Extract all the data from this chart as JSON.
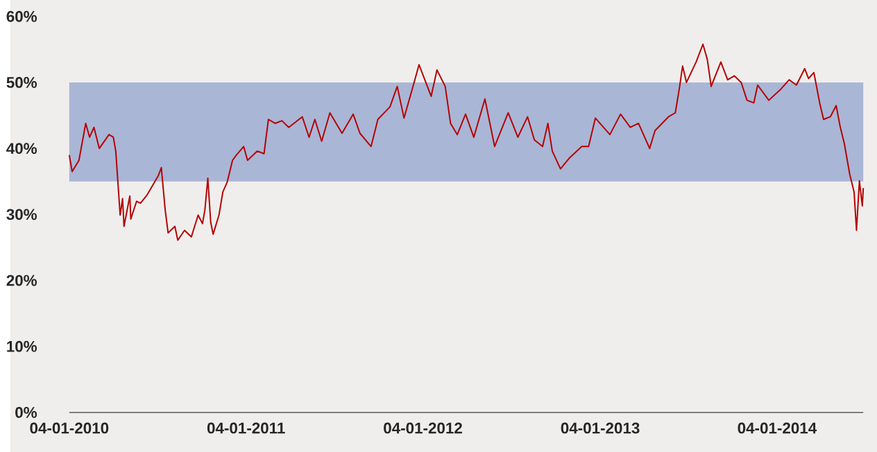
{
  "chart_data": {
    "type": "line",
    "x": [
      "2010-01-04",
      "2010-01-10",
      "2010-01-24",
      "2010-02-07",
      "2010-02-15",
      "2010-02-24",
      "2010-03-07",
      "2010-03-27",
      "2010-04-05",
      "2010-04-10",
      "2010-04-19",
      "2010-04-24",
      "2010-04-27",
      "2010-05-09",
      "2010-05-11",
      "2010-05-23",
      "2010-05-31",
      "2010-06-14",
      "2010-06-29",
      "2010-07-07",
      "2010-07-13",
      "2010-07-21",
      "2010-07-27",
      "2010-08-10",
      "2010-08-16",
      "2010-08-30",
      "2010-09-13",
      "2010-09-27",
      "2010-10-06",
      "2010-10-11",
      "2010-10-17",
      "2010-10-23",
      "2010-10-28",
      "2010-11-09",
      "2010-11-17",
      "2010-11-26",
      "2010-12-07",
      "2010-12-15",
      "2010-12-30",
      "2011-01-07",
      "2011-01-27",
      "2011-02-10",
      "2011-02-19",
      "2011-03-05",
      "2011-03-19",
      "2011-04-02",
      "2011-04-30",
      "2011-05-14",
      "2011-05-26",
      "2011-06-09",
      "2011-06-26",
      "2011-07-21",
      "2011-08-13",
      "2011-08-27",
      "2011-09-19",
      "2011-10-03",
      "2011-10-28",
      "2011-11-12",
      "2011-11-26",
      "2011-12-13",
      "2011-12-27",
      "2012-01-10",
      "2012-01-21",
      "2012-02-02",
      "2012-02-19",
      "2012-03-01",
      "2012-03-15",
      "2012-04-01",
      "2012-04-18",
      "2012-05-11",
      "2012-05-31",
      "2012-06-28",
      "2012-07-18",
      "2012-08-07",
      "2012-08-21",
      "2012-09-07",
      "2012-09-18",
      "2012-09-27",
      "2012-10-14",
      "2012-11-02",
      "2012-11-27",
      "2012-12-11",
      "2012-12-25",
      "2013-01-24",
      "2013-02-15",
      "2013-03-07",
      "2013-03-24",
      "2013-04-16",
      "2013-04-27",
      "2013-05-25",
      "2013-06-08",
      "2013-06-17",
      "2013-06-23",
      "2013-07-01",
      "2013-07-21",
      "2013-08-04",
      "2013-08-13",
      "2013-08-21",
      "2013-09-10",
      "2013-09-24",
      "2013-10-08",
      "2013-10-22",
      "2013-11-03",
      "2013-11-17",
      "2013-11-25",
      "2013-12-18",
      "2014-01-12",
      "2014-01-29",
      "2014-02-13",
      "2014-03-02",
      "2014-03-10",
      "2014-03-21",
      "2014-04-02",
      "2014-04-10",
      "2014-04-24",
      "2014-05-06",
      "2014-05-14",
      "2014-05-23",
      "2014-06-03",
      "2014-06-12",
      "2014-06-17",
      "2014-06-23",
      "2014-06-29",
      "2014-07-01"
    ],
    "series": [
      {
        "color": "#b40000",
        "values": [
          39.0,
          36.5,
          38.2,
          43.8,
          41.7,
          43.2,
          40.0,
          42.1,
          41.7,
          39.6,
          29.9,
          32.4,
          28.2,
          32.8,
          29.3,
          32.0,
          31.7,
          33.0,
          34.9,
          35.9,
          37.1,
          30.7,
          27.2,
          28.2,
          26.1,
          27.6,
          26.6,
          29.9,
          28.6,
          30.7,
          35.5,
          28.8,
          27.0,
          29.9,
          33.4,
          34.9,
          38.2,
          39.0,
          40.3,
          38.2,
          39.6,
          39.2,
          44.4,
          43.8,
          44.2,
          43.2,
          44.8,
          41.7,
          44.4,
          41.1,
          45.4,
          42.3,
          45.2,
          42.3,
          40.3,
          44.4,
          46.3,
          49.4,
          44.6,
          49.0,
          52.7,
          50.0,
          47.9,
          51.9,
          49.4,
          43.8,
          42.1,
          45.2,
          41.7,
          47.5,
          40.3,
          45.4,
          41.7,
          44.8,
          41.3,
          40.3,
          43.8,
          39.6,
          36.9,
          38.6,
          40.3,
          40.3,
          44.6,
          42.1,
          45.2,
          43.2,
          43.8,
          40.0,
          42.7,
          44.8,
          45.4,
          49.4,
          52.5,
          50.0,
          53.1,
          55.8,
          53.5,
          49.4,
          53.1,
          50.4,
          51.0,
          50.0,
          47.3,
          46.9,
          49.6,
          47.3,
          49.0,
          50.4,
          49.6,
          52.1,
          50.6,
          51.5,
          46.9,
          44.4,
          44.8,
          46.5,
          43.4,
          40.7,
          36.1,
          33.4,
          27.6,
          35.1,
          31.3,
          34.0
        ]
      }
    ],
    "xlim": [
      "2010-01-04",
      "2014-07-01"
    ],
    "xticks": [
      {
        "value": "2010-01-04",
        "label": "04-01-2010"
      },
      {
        "value": "2011-01-04",
        "label": "04-01-2011"
      },
      {
        "value": "2012-01-04",
        "label": "04-01-2012"
      },
      {
        "value": "2013-01-04",
        "label": "04-01-2013"
      },
      {
        "value": "2014-01-04",
        "label": "04-01-2014"
      }
    ],
    "ylim": [
      0,
      60
    ],
    "yticks": [
      {
        "value": 0,
        "label": "0%"
      },
      {
        "value": 10,
        "label": "10%"
      },
      {
        "value": 20,
        "label": "20%"
      },
      {
        "value": 30,
        "label": "30%"
      },
      {
        "value": 40,
        "label": "40%"
      },
      {
        "value": 50,
        "label": "50%"
      },
      {
        "value": 60,
        "label": "60%"
      }
    ],
    "bands": [
      {
        "axis": "y",
        "from": 35,
        "to": 50,
        "color": "#aab6d6"
      }
    ],
    "marker": "none"
  }
}
